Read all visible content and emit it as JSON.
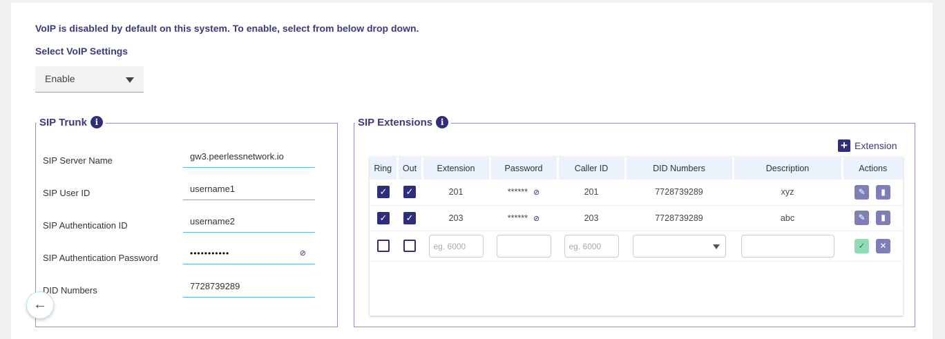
{
  "intro": "VoIP is disabled by default on this system. To enable, select from below drop down.",
  "select_label": "Select VoIP Settings",
  "select_value": "Enable",
  "trunk": {
    "title": "SIP Trunk",
    "fields": [
      {
        "label": "SIP Server Name",
        "value": "gw3.peerlessnetwork.io"
      },
      {
        "label": "SIP User ID",
        "value": "username1"
      },
      {
        "label": "SIP Authentication ID",
        "value": "username2"
      },
      {
        "label": "SIP Authentication Password",
        "value": "•••••••••••"
      },
      {
        "label": "DID Numbers",
        "value": "7728739289"
      }
    ]
  },
  "ext": {
    "title": "SIP Extensions",
    "add_label": "Extension",
    "headers": [
      "Ring",
      "Out",
      "Extension",
      "Password",
      "Caller ID",
      "DID Numbers",
      "Description",
      "Actions"
    ],
    "rows": [
      {
        "ring": true,
        "out": true,
        "extension": "201",
        "password": "******",
        "caller_id": "201",
        "did": "7728739289",
        "description": "xyz"
      },
      {
        "ring": true,
        "out": true,
        "extension": "203",
        "password": "******",
        "caller_id": "203",
        "did": "7728739289",
        "description": "abc"
      }
    ],
    "new_row": {
      "extension_placeholder": "eg. 6000",
      "caller_id_placeholder": "eg. 6000"
    }
  }
}
